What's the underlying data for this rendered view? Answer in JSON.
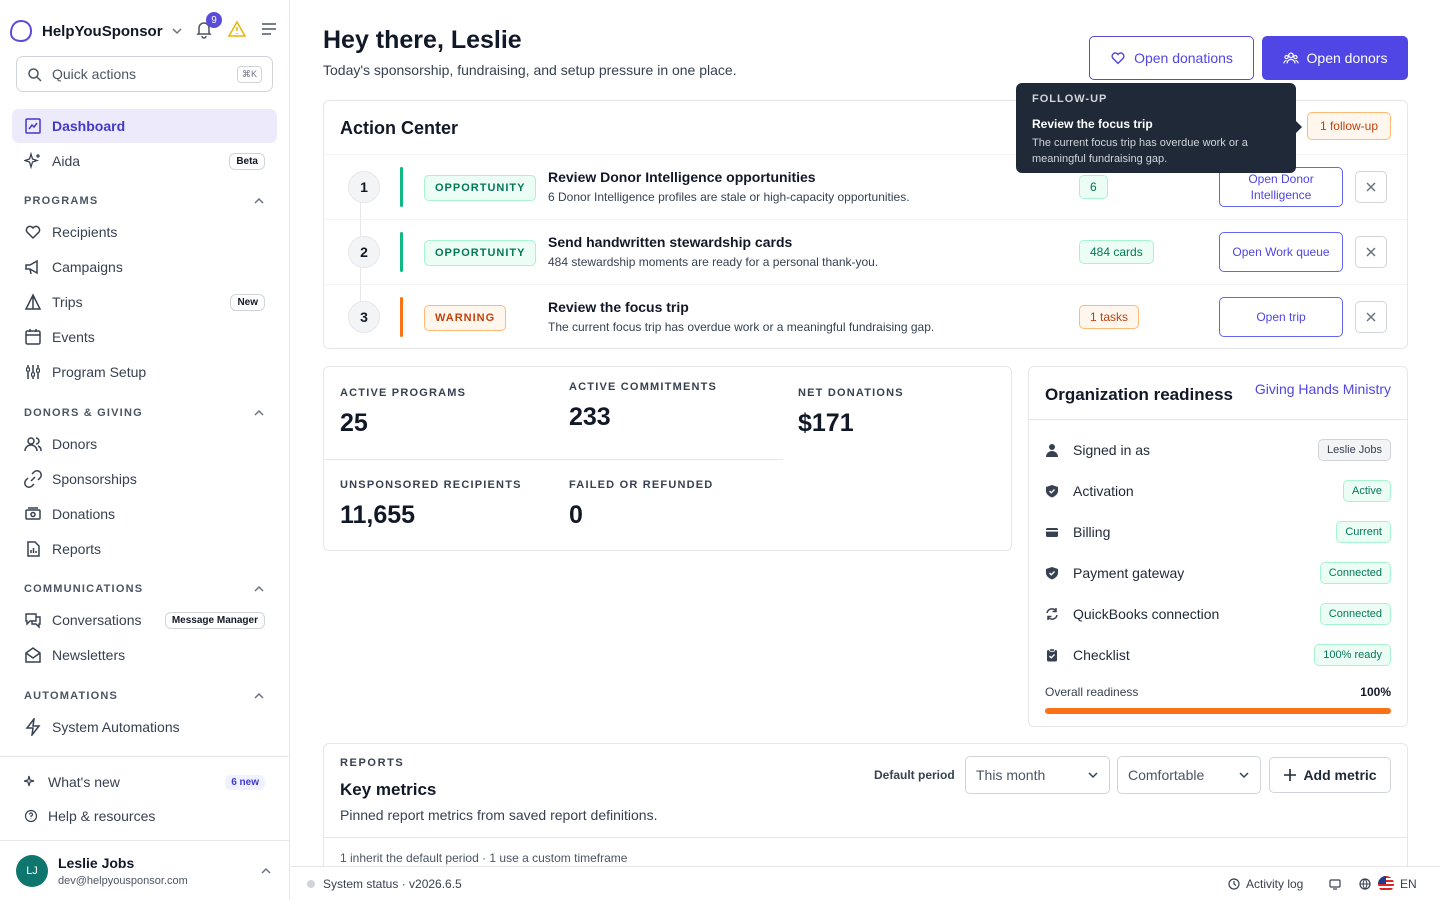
{
  "brand": {
    "name": "HelpYouSponsor",
    "notif_count": "9"
  },
  "quick_actions": {
    "placeholder": "Quick actions",
    "shortcut": "⌘K"
  },
  "nav": {
    "dashboard": "Dashboard",
    "aida": "Aida",
    "aida_badge": "Beta",
    "programs_section": "PROGRAMS",
    "recipients": "Recipients",
    "campaigns": "Campaigns",
    "trips": "Trips",
    "trips_badge": "New",
    "events": "Events",
    "program_setup": "Program Setup",
    "donors_section": "DONORS & GIVING",
    "donors": "Donors",
    "sponsorships": "Sponsorships",
    "donations": "Donations",
    "reports": "Reports",
    "comms_section": "COMMUNICATIONS",
    "conversations": "Conversations",
    "conversations_badge": "Message Manager",
    "newsletters": "Newsletters",
    "automations_section": "AUTOMATIONS",
    "system_automations": "System Automations"
  },
  "bottom": {
    "whats_new": "What's new",
    "whats_new_badge": "6 new",
    "help": "Help & resources"
  },
  "user": {
    "initials": "LJ",
    "name": "Leslie Jobs",
    "email": "dev@helpyousponsor.com"
  },
  "header": {
    "title": "Hey there, Leslie",
    "subtitle": "Today's sponsorship, fundraising, and setup pressure in one place.",
    "open_donations": "Open donations",
    "open_donors": "Open donors"
  },
  "action_center": {
    "title": "Action Center",
    "follow_up": "1 follow-up",
    "rows": [
      {
        "num": "1",
        "tag": "OPPORTUNITY",
        "title": "Review Donor Intelligence opportunities",
        "desc": "6 Donor Intelligence profiles are stale or high-capacity opportunities.",
        "count": "6",
        "button": "Open Donor Intelligence"
      },
      {
        "num": "2",
        "tag": "OPPORTUNITY",
        "title": "Send handwritten stewardship cards",
        "desc": "484 stewardship moments are ready for a personal thank-you.",
        "count": "484 cards",
        "button": "Open Work queue"
      },
      {
        "num": "3",
        "tag": "WARNING",
        "title": "Review the focus trip",
        "desc": "The current focus trip has overdue work or a meaningful fundraising gap.",
        "count": "1 tasks",
        "button": "Open trip"
      }
    ]
  },
  "tooltip": {
    "heading": "FOLLOW-UP",
    "title": "Review the focus trip",
    "desc": "The current focus trip has overdue work or a meaningful fundraising gap."
  },
  "stats": {
    "active_programs_label": "ACTIVE PROGRAMS",
    "active_programs": "25",
    "active_commitments_label": "ACTIVE COMMITMENTS",
    "active_commitments": "233",
    "net_donations_label": "NET DONATIONS",
    "net_donations": "$171",
    "unsponsored_label": "UNSPONSORED RECIPIENTS",
    "unsponsored": "11,655",
    "failed_label": "FAILED OR REFUNDED",
    "failed": "0"
  },
  "readiness": {
    "title": "Organization readiness",
    "org": "Giving Hands Ministry",
    "rows": [
      {
        "label": "Signed in as",
        "value": "Leslie Jobs"
      },
      {
        "label": "Activation",
        "value": "Active"
      },
      {
        "label": "Billing",
        "value": "Current"
      },
      {
        "label": "Payment gateway",
        "value": "Connected"
      },
      {
        "label": "QuickBooks connection",
        "value": "Connected"
      },
      {
        "label": "Checklist",
        "value": "100% ready"
      }
    ],
    "overall_label": "Overall readiness",
    "overall_value": "100%",
    "overall_fraction": 1.0,
    "bar_color": "#f97316"
  },
  "reports": {
    "heading": "REPORTS",
    "title": "Key metrics",
    "desc": "Pinned report metrics from saved report definitions.",
    "period_label": "Default period",
    "period": "This month",
    "density": "Comfortable",
    "add_metric": "Add metric",
    "note": "1 inherit the default period · 1 use a custom timeframe"
  },
  "footer": {
    "status": "System status · v2026.6.5",
    "activity": "Activity log",
    "lang": "EN"
  },
  "colors": {
    "accent": "#4f46e5",
    "success": "#047857",
    "warning": "#c2410c"
  }
}
